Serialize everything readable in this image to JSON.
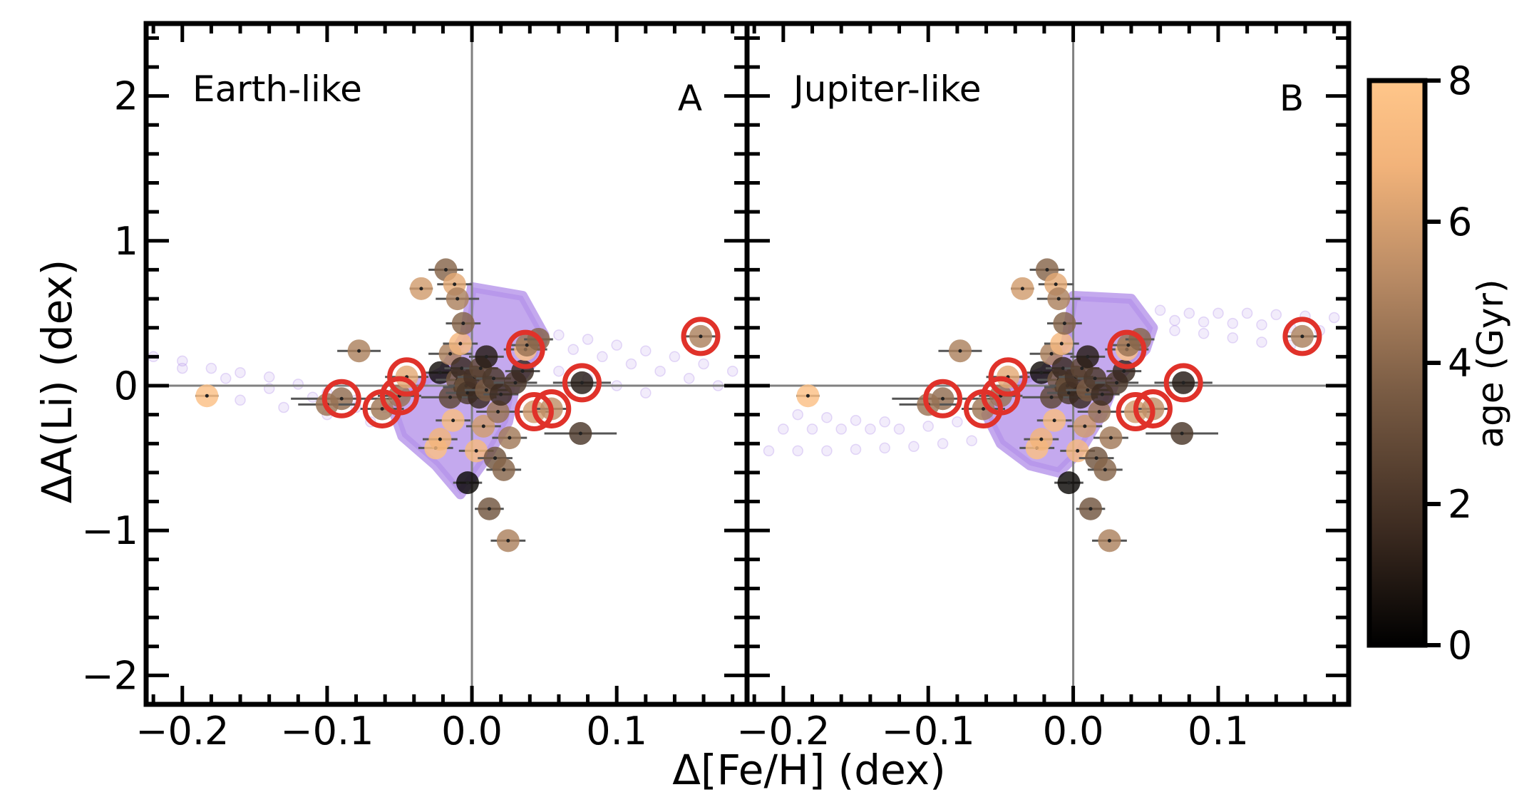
{
  "figure": {
    "xlabel": "Δ[Fe/H] (dex)",
    "ylabel": "ΔA(Li) (dex)",
    "colorbar": {
      "label": "age (Gyr)",
      "range": [
        0,
        8
      ],
      "ticks": [
        "0",
        "2",
        "4",
        "6",
        "8"
      ],
      "colormap": [
        "#000000",
        "#3b2a20",
        "#7a5c44",
        "#b88a64",
        "#f2b37a",
        "#ffc68a"
      ]
    }
  },
  "colors": {
    "simulation": "#b594ea",
    "highlight_ring": "#e0322a",
    "reference_line": "#808080",
    "error_bar": "#555555"
  },
  "chart_data": [
    {
      "type": "scatter",
      "title": "Earth-like",
      "panel_letter": "A",
      "xlim": [
        -0.225,
        0.19
      ],
      "ylim": [
        -2.2,
        2.5
      ],
      "xticks": [
        "−0.2",
        "−0.1",
        "0.0",
        "0.1"
      ],
      "yticks": [
        "−2",
        "−1",
        "0",
        "1",
        "2"
      ],
      "grid": false,
      "reference_lines": {
        "x": 0,
        "y": 0
      },
      "simulation_cloud": {
        "core": [
          [
            0.0,
            0.68
          ],
          [
            0.035,
            0.62
          ],
          [
            0.05,
            0.35
          ],
          [
            0.045,
            0.2
          ],
          [
            0.03,
            0.0
          ],
          [
            0.025,
            -0.25
          ],
          [
            0.01,
            -0.5
          ],
          [
            -0.008,
            -0.75
          ],
          [
            -0.025,
            -0.55
          ],
          [
            -0.048,
            -0.35
          ],
          [
            -0.055,
            -0.15
          ],
          [
            -0.04,
            0.0
          ],
          [
            -0.02,
            0.1
          ],
          [
            -0.005,
            0.35
          ]
        ],
        "tail": [
          [
            -0.22,
            0.2
          ],
          [
            -0.2,
            0.17
          ],
          [
            -0.18,
            0.12
          ],
          [
            -0.16,
            0.09
          ],
          [
            -0.14,
            0.06
          ],
          [
            -0.12,
            0.01
          ],
          [
            -0.1,
            -0.05
          ],
          [
            -0.08,
            -0.1
          ],
          [
            -0.06,
            -0.15
          ],
          [
            -0.2,
            0.12
          ],
          [
            -0.17,
            0.05
          ],
          [
            -0.14,
            -0.02
          ],
          [
            -0.11,
            -0.08
          ],
          [
            -0.08,
            -0.15
          ],
          [
            -0.16,
            -0.1
          ],
          [
            -0.13,
            -0.15
          ],
          [
            -0.1,
            -0.2
          ],
          [
            -0.07,
            -0.25
          ],
          [
            0.06,
            0.35
          ],
          [
            0.08,
            0.32
          ],
          [
            0.1,
            0.28
          ],
          [
            0.12,
            0.24
          ],
          [
            0.14,
            0.2
          ],
          [
            0.16,
            0.15
          ],
          [
            0.18,
            0.1
          ],
          [
            0.07,
            0.25
          ],
          [
            0.09,
            0.2
          ],
          [
            0.11,
            0.15
          ],
          [
            0.13,
            0.1
          ],
          [
            0.15,
            0.05
          ],
          [
            0.17,
            0.0
          ],
          [
            0.06,
            0.1
          ],
          [
            0.08,
            0.05
          ],
          [
            0.1,
            0.0
          ],
          [
            0.12,
            -0.05
          ]
        ]
      },
      "stars": [
        {
          "feh": -0.183,
          "li": -0.07,
          "age": 7.5,
          "xerr": 0.008
        },
        {
          "feh": -0.09,
          "li": -0.09,
          "age": 3.8,
          "xerr": 0.035,
          "highlight": true
        },
        {
          "feh": -0.078,
          "li": 0.24,
          "age": 4.5,
          "xerr": 0.015
        },
        {
          "feh": -0.1,
          "li": -0.13,
          "age": 4.0,
          "xerr": 0.02
        },
        {
          "feh": -0.062,
          "li": -0.16,
          "age": 4.2,
          "xerr": 0.015,
          "highlight": true
        },
        {
          "feh": -0.05,
          "li": -0.07,
          "age": 4.0,
          "xerr": 0.015,
          "highlight": true
        },
        {
          "feh": -0.045,
          "li": 0.06,
          "age": 6.0,
          "xerr": 0.015,
          "highlight": true
        },
        {
          "feh": -0.035,
          "li": 0.67,
          "age": 5.5,
          "xerr": 0.008
        },
        {
          "feh": -0.025,
          "li": -0.43,
          "age": 7.5,
          "xerr": 0.012
        },
        {
          "feh": -0.022,
          "li": -0.37,
          "age": 6.5,
          "xerr": 0.012
        },
        {
          "feh": -0.022,
          "li": 0.09,
          "age": 0.5,
          "xerr": 0.012
        },
        {
          "feh": -0.018,
          "li": 0.8,
          "age": 3.5,
          "xerr": 0.012
        },
        {
          "feh": -0.015,
          "li": -0.08,
          "age": 2.5,
          "xerr": 0.02
        },
        {
          "feh": -0.015,
          "li": 0.22,
          "age": 4.5,
          "xerr": 0.015
        },
        {
          "feh": -0.013,
          "li": -0.24,
          "age": 7.2,
          "xerr": 0.012
        },
        {
          "feh": -0.012,
          "li": 0.7,
          "age": 6.0,
          "xerr": 0.012
        },
        {
          "feh": -0.01,
          "li": 0.6,
          "age": 4.5,
          "xerr": 0.015
        },
        {
          "feh": -0.01,
          "li": 0.04,
          "age": 3.0,
          "xerr": 0.015
        },
        {
          "feh": -0.008,
          "li": 0.29,
          "age": 7.0,
          "xerr": 0.012
        },
        {
          "feh": -0.007,
          "li": 0.12,
          "age": 1.5,
          "xerr": 0.012
        },
        {
          "feh": -0.006,
          "li": 0.43,
          "age": 3.5,
          "xerr": 0.012
        },
        {
          "feh": -0.005,
          "li": -0.01,
          "age": 2.2,
          "xerr": 0.015
        },
        {
          "feh": -0.004,
          "li": 0.0,
          "age": 2.8,
          "xerr": 0.012
        },
        {
          "feh": -0.003,
          "li": -0.05,
          "age": 2.0,
          "xerr": 0.015
        },
        {
          "feh": -0.003,
          "li": -0.67,
          "age": 0.3,
          "xerr": 0.01
        },
        {
          "feh": 0.002,
          "li": 0.06,
          "age": 1.8,
          "xerr": 0.012
        },
        {
          "feh": 0.003,
          "li": -0.45,
          "age": 7.0,
          "xerr": 0.012
        },
        {
          "feh": 0.005,
          "li": -0.08,
          "age": 1.5,
          "xerr": 0.012
        },
        {
          "feh": 0.006,
          "li": 0.12,
          "age": 2.5,
          "xerr": 0.012
        },
        {
          "feh": 0.008,
          "li": -0.28,
          "age": 5.5,
          "xerr": 0.012
        },
        {
          "feh": 0.01,
          "li": 0.2,
          "age": 1.0,
          "xerr": 0.012
        },
        {
          "feh": 0.01,
          "li": -0.03,
          "age": 3.2,
          "xerr": 0.015
        },
        {
          "feh": 0.012,
          "li": -0.85,
          "age": 3.0,
          "xerr": 0.01
        },
        {
          "feh": 0.015,
          "li": 0.05,
          "age": 2.0,
          "xerr": 0.012
        },
        {
          "feh": 0.016,
          "li": -0.5,
          "age": 3.0,
          "xerr": 0.012
        },
        {
          "feh": 0.018,
          "li": -0.18,
          "age": 4.0,
          "xerr": 0.015
        },
        {
          "feh": 0.02,
          "li": -0.06,
          "age": 1.6,
          "xerr": 0.012
        },
        {
          "feh": 0.022,
          "li": -0.58,
          "age": 3.5,
          "xerr": 0.012
        },
        {
          "feh": 0.025,
          "li": -1.07,
          "age": 4.5,
          "xerr": 0.012
        },
        {
          "feh": 0.026,
          "li": -0.36,
          "age": 4.2,
          "xerr": 0.012
        },
        {
          "feh": 0.03,
          "li": 0.02,
          "age": 2.0,
          "xerr": 0.015
        },
        {
          "feh": 0.035,
          "li": 0.1,
          "age": 1.5,
          "xerr": 0.012
        },
        {
          "feh": 0.037,
          "li": 0.25,
          "age": 7.5,
          "xerr": 0.015,
          "highlight": true
        },
        {
          "feh": 0.038,
          "li": 0.28,
          "age": 4.0,
          "xerr": 0.012
        },
        {
          "feh": 0.043,
          "li": -0.18,
          "age": 5.5,
          "xerr": 0.012,
          "highlight": true
        },
        {
          "feh": 0.046,
          "li": 0.32,
          "age": 3.5,
          "xerr": 0.01
        },
        {
          "feh": 0.055,
          "li": -0.16,
          "age": 5.0,
          "xerr": 0.012,
          "highlight": true
        },
        {
          "feh": 0.075,
          "li": -0.33,
          "age": 2.0,
          "xerr": 0.025
        },
        {
          "feh": 0.076,
          "li": 0.02,
          "age": 1.0,
          "xerr": 0.02,
          "highlight": true
        },
        {
          "feh": 0.158,
          "li": 0.34,
          "age": 4.5,
          "xerr": 0.012,
          "highlight": true
        }
      ]
    },
    {
      "type": "scatter",
      "title": "Jupiter-like",
      "panel_letter": "B",
      "xlim": [
        -0.225,
        0.19
      ],
      "ylim": [
        -2.2,
        2.5
      ],
      "xticks": [
        "−0.2",
        "−0.1",
        "0.0",
        "0.1"
      ],
      "yticks": [
        "−2",
        "−1",
        "0",
        "1",
        "2"
      ],
      "grid": false,
      "reference_lines": {
        "x": 0,
        "y": 0
      },
      "simulation_cloud": {
        "core": [
          [
            0.0,
            0.62
          ],
          [
            0.04,
            0.6
          ],
          [
            0.055,
            0.4
          ],
          [
            0.05,
            0.25
          ],
          [
            0.03,
            0.05
          ],
          [
            0.02,
            -0.2
          ],
          [
            0.005,
            -0.45
          ],
          [
            -0.01,
            -0.6
          ],
          [
            -0.03,
            -0.55
          ],
          [
            -0.05,
            -0.4
          ],
          [
            -0.06,
            -0.2
          ],
          [
            -0.045,
            0.0
          ],
          [
            -0.02,
            0.1
          ],
          [
            -0.005,
            0.3
          ]
        ],
        "tail": [
          [
            0.06,
            0.52
          ],
          [
            0.08,
            0.5
          ],
          [
            0.1,
            0.5
          ],
          [
            0.12,
            0.5
          ],
          [
            0.14,
            0.49
          ],
          [
            0.16,
            0.48
          ],
          [
            0.18,
            0.47
          ],
          [
            0.07,
            0.45
          ],
          [
            0.09,
            0.44
          ],
          [
            0.11,
            0.43
          ],
          [
            0.13,
            0.42
          ],
          [
            0.15,
            0.4
          ],
          [
            0.17,
            0.38
          ],
          [
            0.07,
            0.38
          ],
          [
            0.09,
            0.36
          ],
          [
            0.11,
            0.33
          ],
          [
            0.13,
            0.3
          ],
          [
            0.15,
            0.28
          ],
          [
            -0.21,
            -0.45
          ],
          [
            -0.19,
            -0.45
          ],
          [
            -0.17,
            -0.45
          ],
          [
            -0.15,
            -0.44
          ],
          [
            -0.13,
            -0.43
          ],
          [
            -0.11,
            -0.42
          ],
          [
            -0.09,
            -0.4
          ],
          [
            -0.07,
            -0.38
          ],
          [
            -0.2,
            -0.3
          ],
          [
            -0.18,
            -0.3
          ],
          [
            -0.16,
            -0.3
          ],
          [
            -0.14,
            -0.3
          ],
          [
            -0.12,
            -0.3
          ],
          [
            -0.1,
            -0.28
          ],
          [
            -0.08,
            -0.25
          ],
          [
            -0.19,
            -0.2
          ],
          [
            -0.17,
            -0.22
          ],
          [
            -0.15,
            -0.24
          ],
          [
            -0.13,
            -0.25
          ]
        ]
      },
      "stars": [
        {
          "feh": -0.183,
          "li": -0.07,
          "age": 7.5,
          "xerr": 0.008
        },
        {
          "feh": -0.09,
          "li": -0.09,
          "age": 3.8,
          "xerr": 0.035,
          "highlight": true
        },
        {
          "feh": -0.078,
          "li": 0.24,
          "age": 4.5,
          "xerr": 0.015
        },
        {
          "feh": -0.1,
          "li": -0.13,
          "age": 4.0,
          "xerr": 0.02
        },
        {
          "feh": -0.062,
          "li": -0.16,
          "age": 4.2,
          "xerr": 0.015,
          "highlight": true
        },
        {
          "feh": -0.05,
          "li": -0.07,
          "age": 4.0,
          "xerr": 0.015,
          "highlight": true
        },
        {
          "feh": -0.045,
          "li": 0.06,
          "age": 6.0,
          "xerr": 0.015,
          "highlight": true
        },
        {
          "feh": -0.035,
          "li": 0.67,
          "age": 5.5,
          "xerr": 0.008
        },
        {
          "feh": -0.025,
          "li": -0.43,
          "age": 7.5,
          "xerr": 0.012
        },
        {
          "feh": -0.022,
          "li": -0.37,
          "age": 6.5,
          "xerr": 0.012
        },
        {
          "feh": -0.022,
          "li": 0.09,
          "age": 0.5,
          "xerr": 0.012
        },
        {
          "feh": -0.018,
          "li": 0.8,
          "age": 3.5,
          "xerr": 0.012
        },
        {
          "feh": -0.015,
          "li": -0.08,
          "age": 2.5,
          "xerr": 0.02
        },
        {
          "feh": -0.015,
          "li": 0.22,
          "age": 4.5,
          "xerr": 0.015
        },
        {
          "feh": -0.013,
          "li": -0.24,
          "age": 7.2,
          "xerr": 0.012
        },
        {
          "feh": -0.012,
          "li": 0.7,
          "age": 6.0,
          "xerr": 0.012
        },
        {
          "feh": -0.01,
          "li": 0.6,
          "age": 4.5,
          "xerr": 0.015
        },
        {
          "feh": -0.01,
          "li": 0.04,
          "age": 3.0,
          "xerr": 0.015
        },
        {
          "feh": -0.008,
          "li": 0.29,
          "age": 7.0,
          "xerr": 0.012
        },
        {
          "feh": -0.007,
          "li": 0.12,
          "age": 1.5,
          "xerr": 0.012
        },
        {
          "feh": -0.006,
          "li": 0.43,
          "age": 3.5,
          "xerr": 0.012
        },
        {
          "feh": -0.005,
          "li": -0.01,
          "age": 2.2,
          "xerr": 0.015
        },
        {
          "feh": -0.004,
          "li": 0.0,
          "age": 2.8,
          "xerr": 0.012
        },
        {
          "feh": -0.003,
          "li": -0.05,
          "age": 2.0,
          "xerr": 0.015
        },
        {
          "feh": -0.003,
          "li": -0.67,
          "age": 0.3,
          "xerr": 0.01
        },
        {
          "feh": 0.002,
          "li": 0.06,
          "age": 1.8,
          "xerr": 0.012
        },
        {
          "feh": 0.003,
          "li": -0.45,
          "age": 7.0,
          "xerr": 0.012
        },
        {
          "feh": 0.005,
          "li": -0.08,
          "age": 1.5,
          "xerr": 0.012
        },
        {
          "feh": 0.006,
          "li": 0.12,
          "age": 2.5,
          "xerr": 0.012
        },
        {
          "feh": 0.008,
          "li": -0.28,
          "age": 5.5,
          "xerr": 0.012
        },
        {
          "feh": 0.01,
          "li": 0.2,
          "age": 1.0,
          "xerr": 0.012
        },
        {
          "feh": 0.01,
          "li": -0.03,
          "age": 3.2,
          "xerr": 0.015
        },
        {
          "feh": 0.012,
          "li": -0.85,
          "age": 3.0,
          "xerr": 0.01
        },
        {
          "feh": 0.015,
          "li": 0.05,
          "age": 2.0,
          "xerr": 0.012
        },
        {
          "feh": 0.016,
          "li": -0.5,
          "age": 3.0,
          "xerr": 0.012
        },
        {
          "feh": 0.018,
          "li": -0.18,
          "age": 4.0,
          "xerr": 0.015
        },
        {
          "feh": 0.02,
          "li": -0.06,
          "age": 1.6,
          "xerr": 0.012
        },
        {
          "feh": 0.022,
          "li": -0.58,
          "age": 3.5,
          "xerr": 0.012
        },
        {
          "feh": 0.025,
          "li": -1.07,
          "age": 4.5,
          "xerr": 0.012
        },
        {
          "feh": 0.026,
          "li": -0.36,
          "age": 4.2,
          "xerr": 0.012
        },
        {
          "feh": 0.03,
          "li": 0.02,
          "age": 2.0,
          "xerr": 0.015
        },
        {
          "feh": 0.035,
          "li": 0.1,
          "age": 1.5,
          "xerr": 0.012
        },
        {
          "feh": 0.037,
          "li": 0.25,
          "age": 7.5,
          "xerr": 0.015,
          "highlight": true
        },
        {
          "feh": 0.038,
          "li": 0.28,
          "age": 4.0,
          "xerr": 0.012
        },
        {
          "feh": 0.043,
          "li": -0.18,
          "age": 5.5,
          "xerr": 0.012,
          "highlight": true
        },
        {
          "feh": 0.046,
          "li": 0.32,
          "age": 3.5,
          "xerr": 0.01
        },
        {
          "feh": 0.055,
          "li": -0.16,
          "age": 5.0,
          "xerr": 0.012,
          "highlight": true
        },
        {
          "feh": 0.075,
          "li": -0.33,
          "age": 2.0,
          "xerr": 0.025
        },
        {
          "feh": 0.076,
          "li": 0.02,
          "age": 1.0,
          "xerr": 0.02,
          "highlight": true
        },
        {
          "feh": 0.158,
          "li": 0.34,
          "age": 4.5,
          "xerr": 0.012,
          "highlight": true
        }
      ]
    }
  ]
}
